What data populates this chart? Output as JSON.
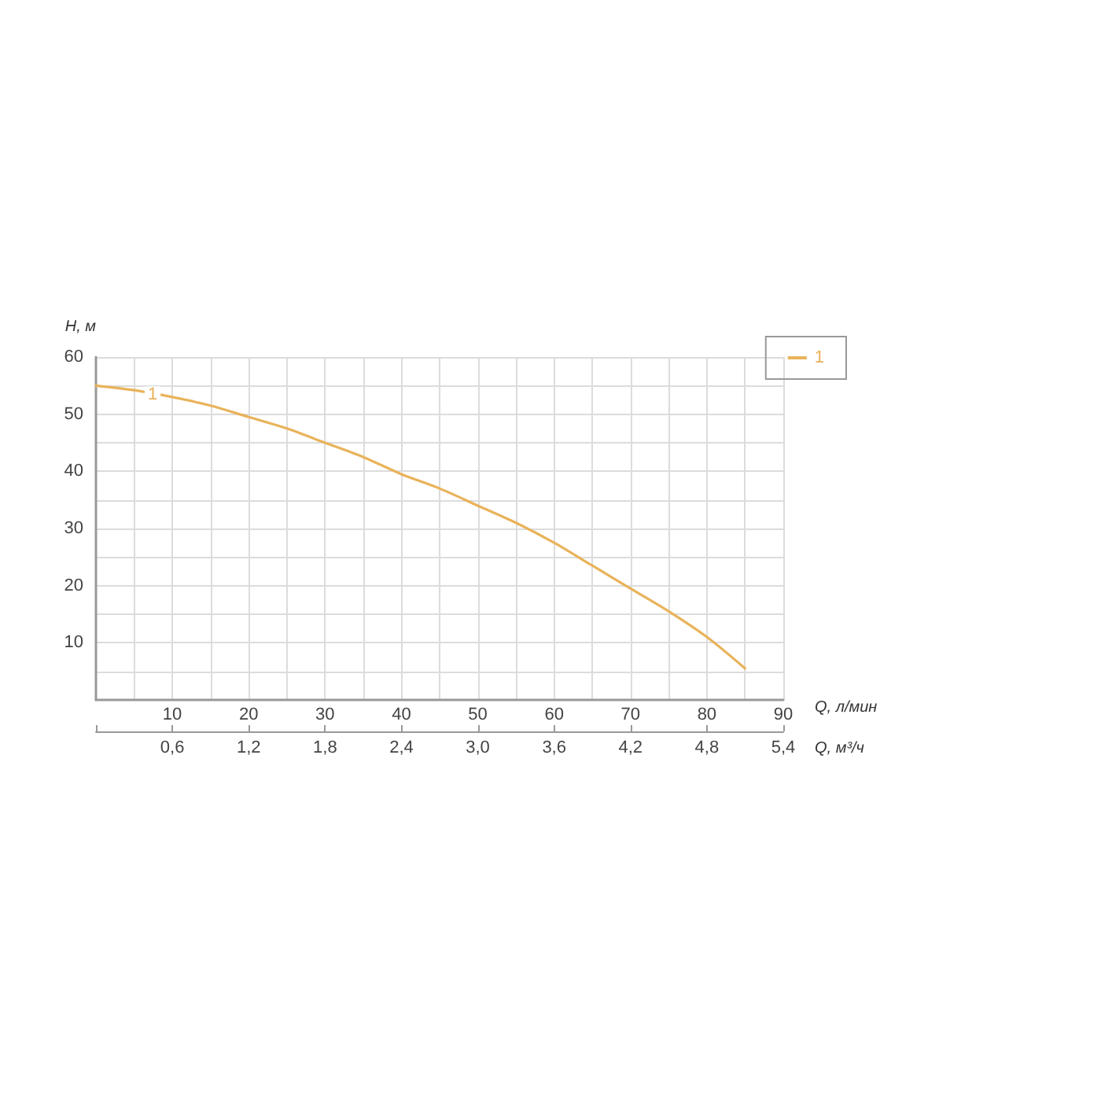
{
  "chart_data": {
    "type": "line",
    "xlabel": "Q, л/мин",
    "ylabel": "H, м",
    "x2label": "Q, м³/ч",
    "xlim": [
      0,
      90
    ],
    "xticks": [
      {
        "value": 5,
        "label": null
      },
      10,
      {
        "value": 15,
        "label": null
      },
      20,
      {
        "value": 25,
        "label": null
      },
      30,
      {
        "value": 35,
        "label": null
      },
      40,
      {
        "value": 45,
        "label": null
      },
      50,
      {
        "value": 55,
        "label": null
      },
      60,
      {
        "value": 65,
        "label": null
      },
      70,
      {
        "value": 75,
        "label": null
      },
      80,
      {
        "value": 85,
        "label": null
      },
      90
    ],
    "x2lim": [
      0,
      5.4
    ],
    "x2ticks": [
      {
        "value": 0,
        "label": null
      },
      {
        "value": 0.6,
        "label": "0,6"
      },
      {
        "value": 1.2,
        "label": "1,2"
      },
      {
        "value": 1.8,
        "label": "1,8"
      },
      {
        "value": 2.4,
        "label": "2,4"
      },
      {
        "value": 3,
        "label": "3,0"
      },
      {
        "value": 3.6,
        "label": "3,6"
      },
      {
        "value": 4.2,
        "label": "4,2"
      },
      {
        "value": 4.8,
        "label": "4,8"
      },
      {
        "value": 5.4,
        "label": "5,4"
      }
    ],
    "ylim": [
      0,
      60
    ],
    "yticks": [
      {
        "value": 5,
        "label": null
      },
      10,
      {
        "value": 15,
        "label": null
      },
      20,
      {
        "value": 25,
        "label": null
      },
      30,
      {
        "value": 35,
        "label": null
      },
      40,
      {
        "value": 45,
        "label": null
      },
      50,
      {
        "value": 55,
        "label": null
      },
      60
    ],
    "grid": true,
    "legend": "top right",
    "marker": "none",
    "line_style": "solid",
    "x": [
      0,
      5,
      10,
      15,
      20,
      25,
      30,
      35,
      40,
      45,
      50,
      55,
      60,
      65,
      70,
      75,
      80,
      85
    ],
    "series": [
      {
        "name": "1",
        "color": "#e9b35b",
        "values": [
          55,
          54.2,
          53,
          51.5,
          49.5,
          47.5,
          45,
          42.5,
          39.5,
          37,
          34,
          31,
          27.5,
          23.5,
          19.5,
          15.5,
          11,
          5.5
        ]
      }
    ]
  }
}
